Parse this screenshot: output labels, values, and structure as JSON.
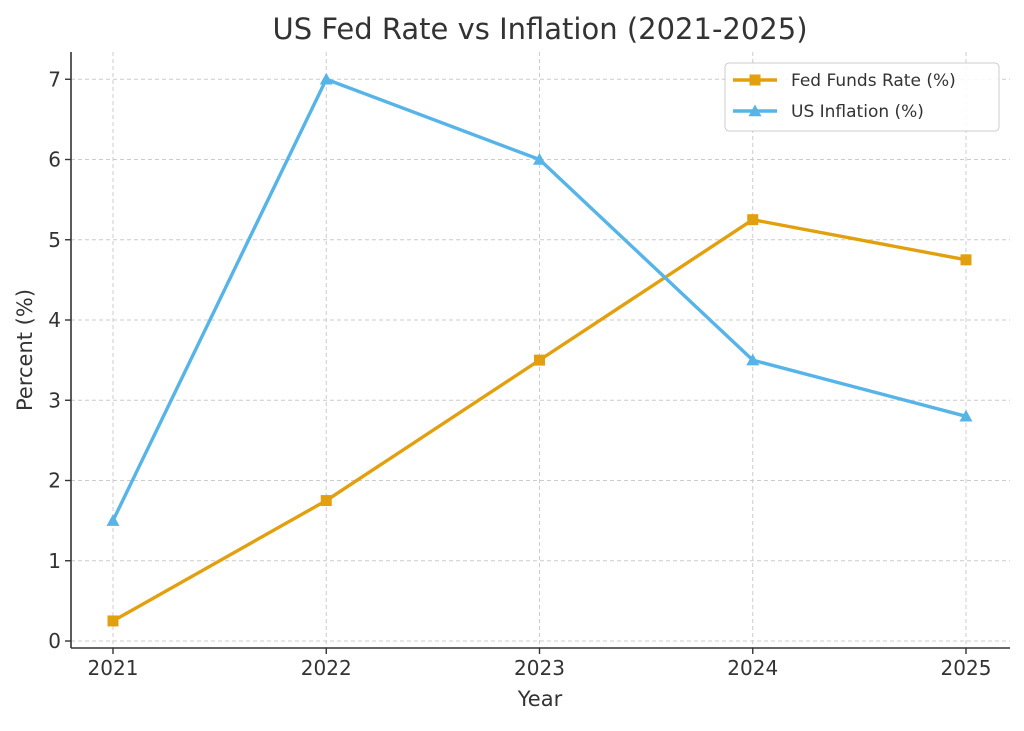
{
  "chart_data": {
    "type": "line",
    "title": "US Fed Rate vs Inflation (2021-2025)",
    "xlabel": "Year",
    "ylabel": "Percent (%)",
    "x": [
      2021,
      2022,
      2023,
      2024,
      2025
    ],
    "x_tick_labels": [
      "2021",
      "2022",
      "2023",
      "2024",
      "2025"
    ],
    "ylim": [
      0,
      7
    ],
    "y_ticks": [
      0,
      1,
      2,
      3,
      4,
      5,
      6,
      7
    ],
    "grid": true,
    "legend_position": "top-right",
    "series": [
      {
        "name": "Fed Funds Rate (%)",
        "values": [
          0.25,
          1.75,
          3.5,
          5.25,
          4.75
        ],
        "color": "#E3A00E",
        "marker": "square"
      },
      {
        "name": "US Inflation (%)",
        "values": [
          1.5,
          7.0,
          6.0,
          3.5,
          2.8
        ],
        "color": "#56B4E9",
        "marker": "triangle"
      }
    ]
  }
}
